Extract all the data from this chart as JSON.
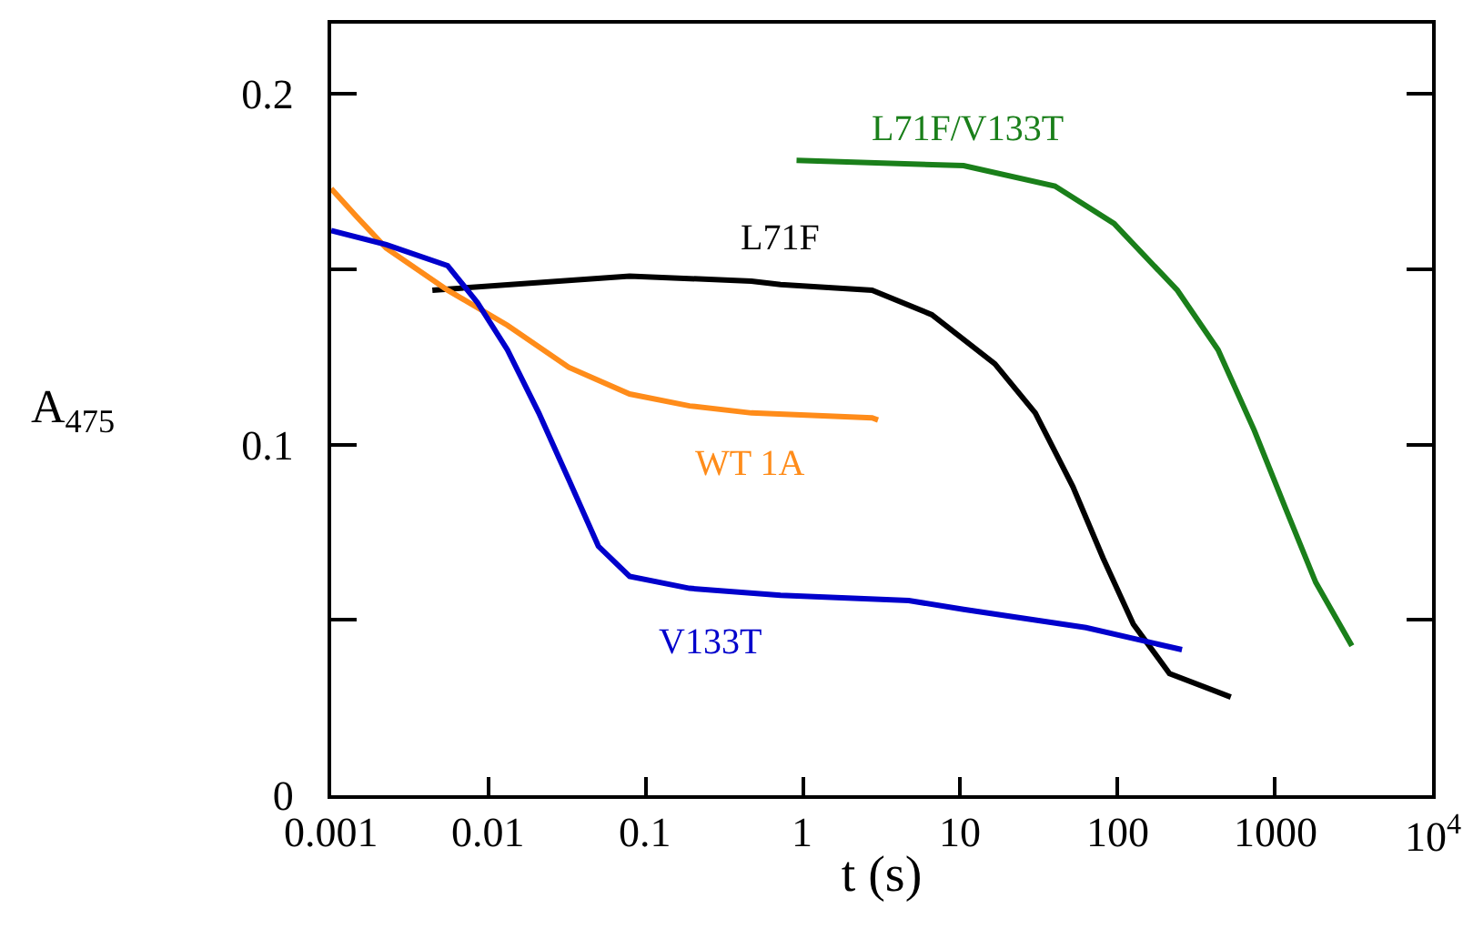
{
  "chart_data": {
    "type": "line",
    "xlabel": "t (s)",
    "ylabel": "A$_{475}$",
    "log": "x",
    "grid": false,
    "legend": false,
    "marker": "none",
    "line_style": "solid",
    "xlim": [
      0.001,
      10000
    ],
    "xticks": [
      0.001,
      0.01,
      0.1,
      1,
      10,
      100,
      1000,
      {
        "value": 10000,
        "label": "10$^{4}$"
      }
    ],
    "ylim": [
      0,
      0.22
    ],
    "yticks": [
      0,
      {
        "value": 0.05,
        "label": null
      },
      0.1,
      {
        "value": 0.15,
        "label": null
      },
      0.2
    ],
    "series": [
      {
        "name": "L71F",
        "color": "#000000",
        "x": [
          0.0044,
          0.079,
          0.47,
          0.72,
          2.75,
          6.6,
          16.6,
          30,
          52,
          81,
          126,
          214,
          525
        ],
        "values": [
          0.144,
          0.148,
          0.1466,
          0.1456,
          0.144,
          0.137,
          0.123,
          0.109,
          0.088,
          0.0676,
          0.0488,
          0.0347,
          0.028
        ]
      },
      {
        "name": "WT 1A",
        "color": "#ff8c1a",
        "x": [
          0.001,
          0.00145,
          0.00224,
          0.0055,
          0.0132,
          0.0324,
          0.079,
          0.19,
          0.47,
          2.75,
          3.0
        ],
        "values": [
          0.173,
          0.165,
          0.156,
          0.144,
          0.134,
          0.122,
          0.1144,
          0.111,
          0.109,
          0.1076,
          0.107
        ]
      },
      {
        "name": "V133T",
        "color": "#0000cc",
        "x": [
          0.001,
          0.00224,
          0.0055,
          0.0085,
          0.0132,
          0.0209,
          0.0324,
          0.05,
          0.079,
          0.19,
          0.72,
          4.7,
          10.5,
          63,
          257
        ],
        "values": [
          0.161,
          0.157,
          0.151,
          0.1405,
          0.127,
          0.109,
          0.09,
          0.071,
          0.0624,
          0.059,
          0.057,
          0.0555,
          0.053,
          0.0478,
          0.0415
        ]
      },
      {
        "name": "L71F/V133T",
        "color": "#1a7f1a",
        "x": [
          0.91,
          10.5,
          40,
          95,
          240,
          436,
          741,
          1175,
          1820,
          3090
        ],
        "values": [
          0.181,
          0.1795,
          0.1737,
          0.163,
          0.144,
          0.127,
          0.104,
          0.0816,
          0.0607,
          0.0426
        ]
      }
    ]
  }
}
